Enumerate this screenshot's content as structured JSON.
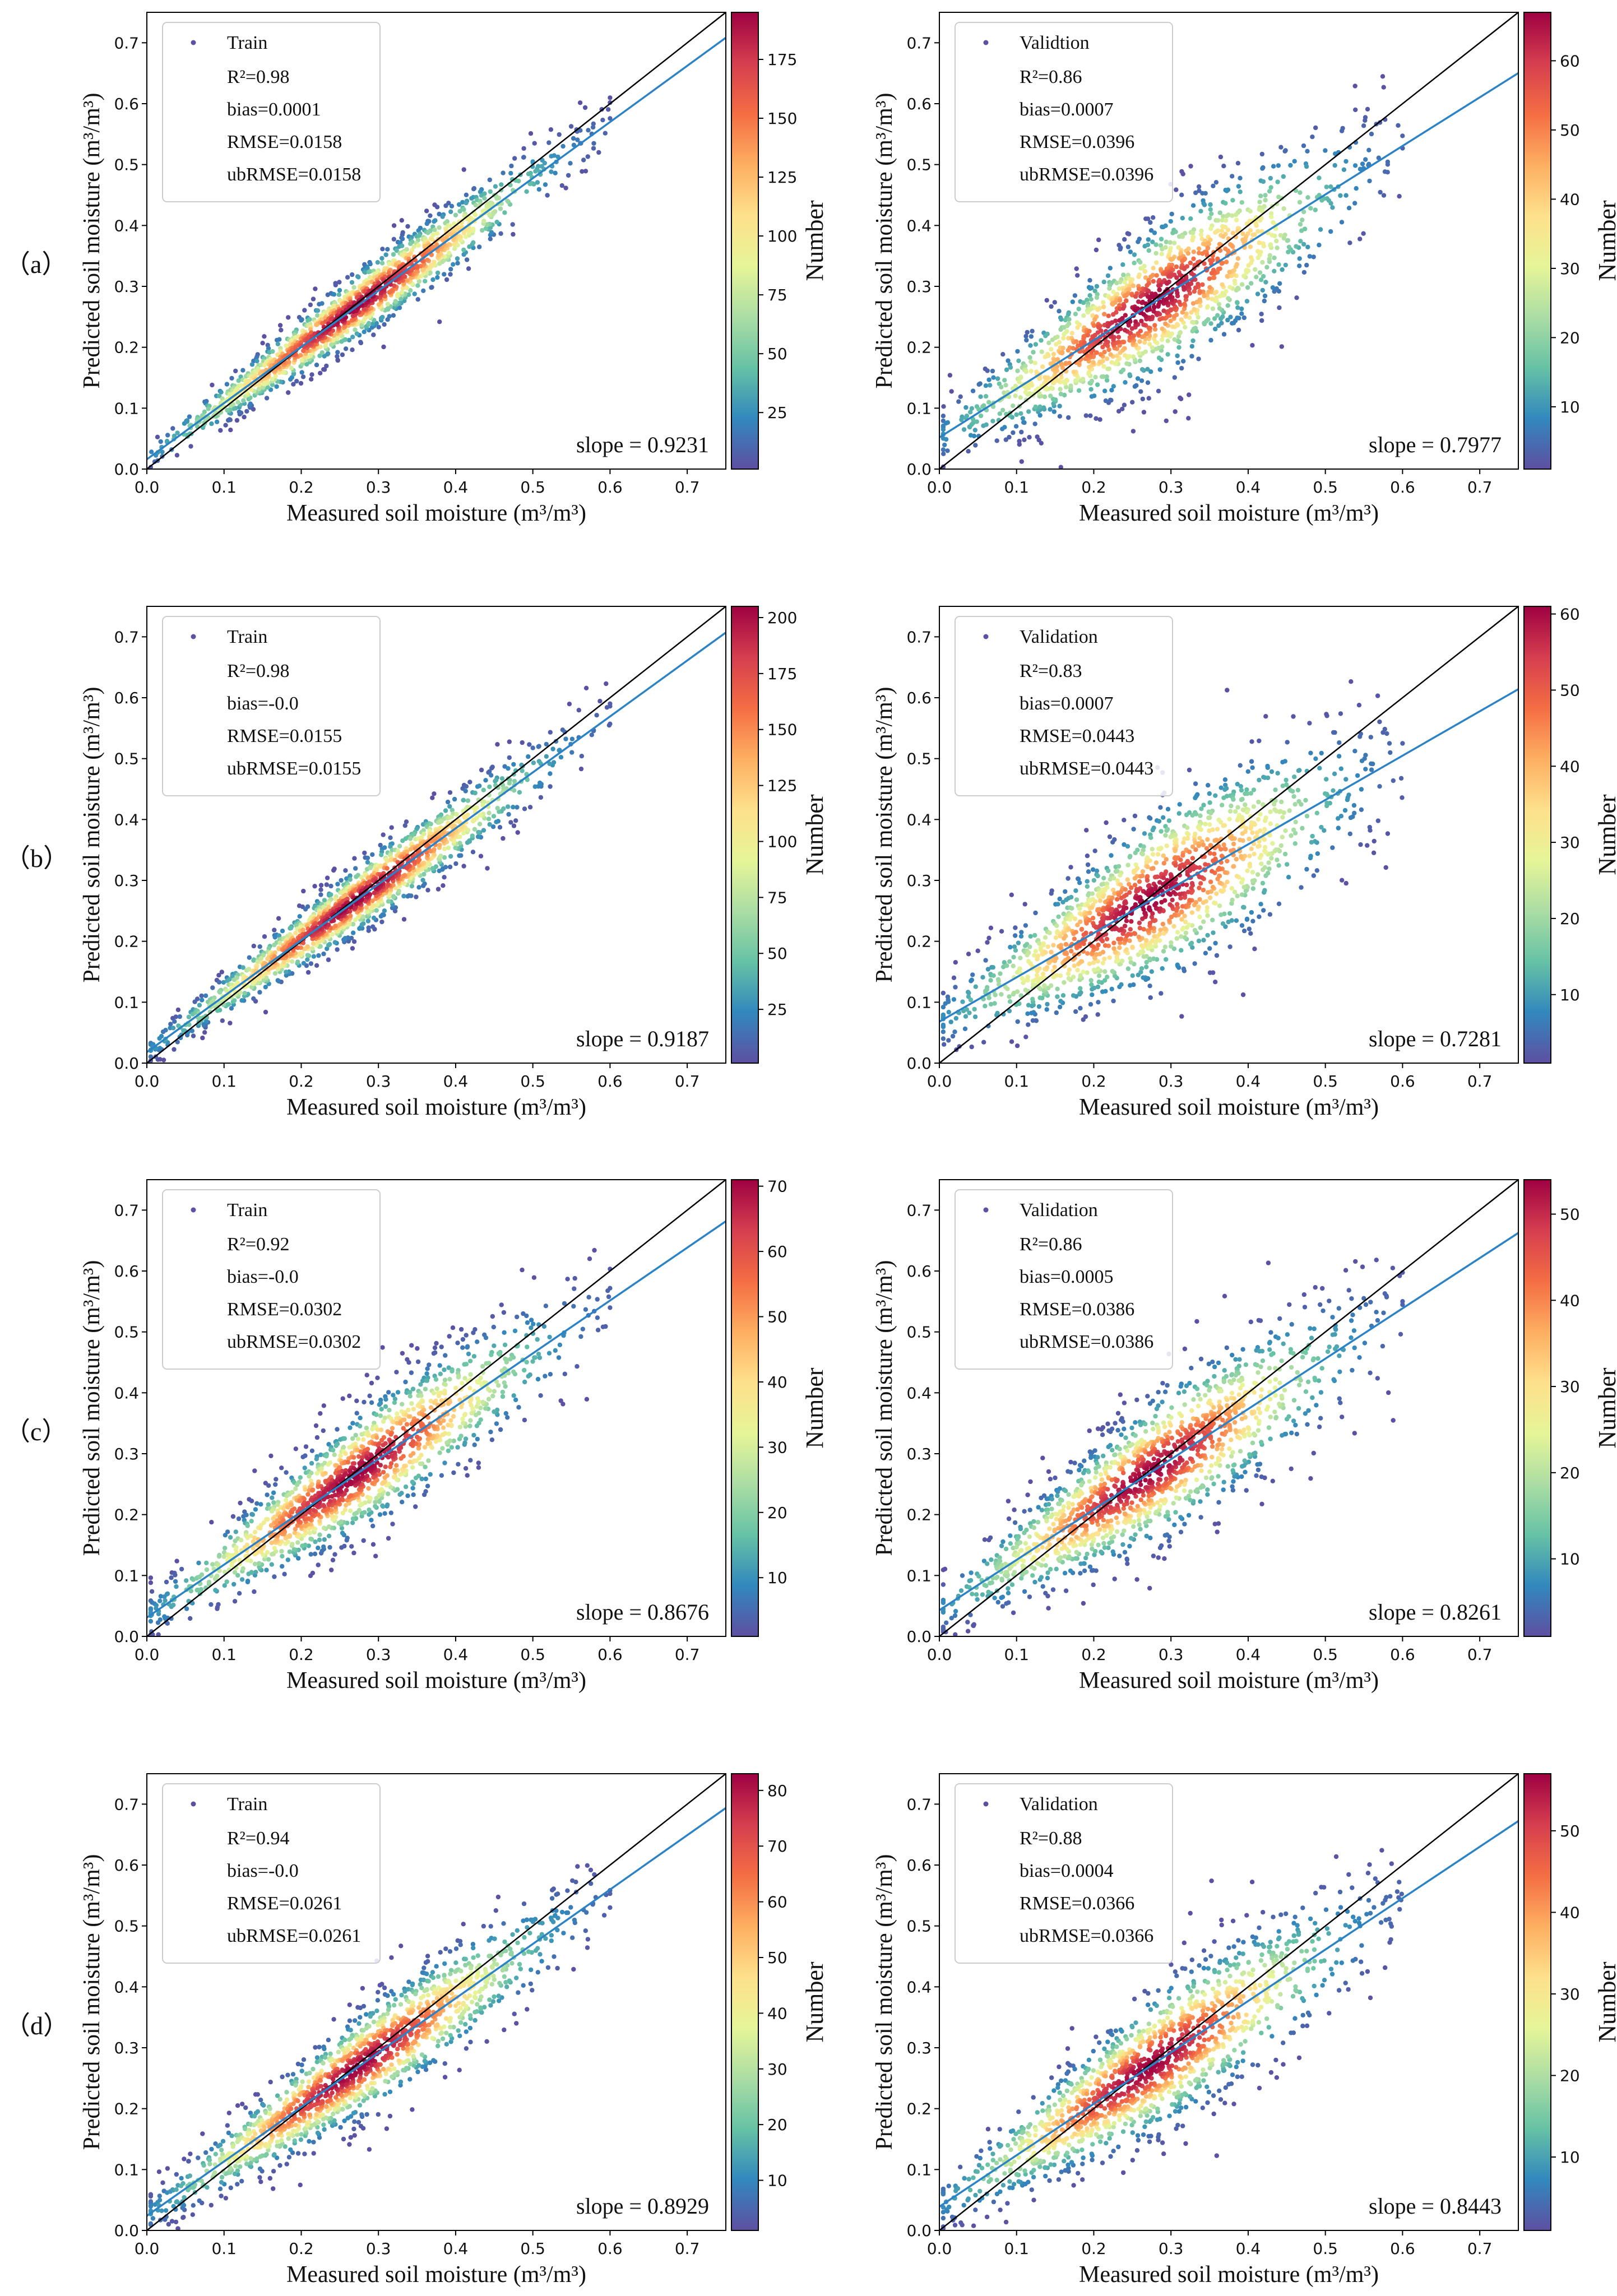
{
  "figure": {
    "row_labels": [
      "（a）",
      "（b）",
      "（c）",
      "（d）"
    ]
  },
  "chart_data": [
    {
      "type": "scatter",
      "row": "（a）",
      "xlabel": "Measured soil moisture (m³/m³)",
      "ylabel": "Predicted soil moisture (m³/m³)",
      "xlim": [
        0,
        0.75
      ],
      "ylim": [
        0,
        0.75
      ],
      "xticks": [
        0.0,
        0.1,
        0.2,
        0.3,
        0.4,
        0.5,
        0.6,
        0.7
      ],
      "yticks": [
        0.0,
        0.1,
        0.2,
        0.3,
        0.4,
        0.5,
        0.6,
        0.7
      ],
      "legend": {
        "label": "Train",
        "r2": "R²=0.98",
        "bias": "bias=0.0001",
        "rmse": "RMSE=0.0158",
        "ubrmse": "ubRMSE=0.0158"
      },
      "slope_label": "slope = 0.9231",
      "fit": {
        "slope": 0.9231,
        "intercept": 0.016
      },
      "spread": 0.02,
      "colorbar": {
        "label": "Number",
        "ticks": [
          25,
          50,
          75,
          100,
          125,
          150,
          175
        ],
        "max": 195
      },
      "colormap": [
        "#5e4fa2",
        "#3288bd",
        "#66c2a5",
        "#abdda4",
        "#e6f598",
        "#fee08b",
        "#fdae61",
        "#f46d43",
        "#d53e4f",
        "#9e0142"
      ]
    },
    {
      "type": "scatter",
      "row": "（a）",
      "xlabel": "Measured soil moisture (m³/m³)",
      "ylabel": "Predicted soil moisture (m³/m³)",
      "xlim": [
        0,
        0.75
      ],
      "ylim": [
        0,
        0.75
      ],
      "xticks": [
        0.0,
        0.1,
        0.2,
        0.3,
        0.4,
        0.5,
        0.6,
        0.7
      ],
      "yticks": [
        0.0,
        0.1,
        0.2,
        0.3,
        0.4,
        0.5,
        0.6,
        0.7
      ],
      "legend": {
        "label": "Validtion",
        "r2": "R²=0.86",
        "bias": "bias=0.0007",
        "rmse": "RMSE=0.0396",
        "ubrmse": "ubRMSE=0.0396"
      },
      "slope_label": "slope = 0.7977",
      "fit": {
        "slope": 0.7977,
        "intercept": 0.052
      },
      "spread": 0.045,
      "colorbar": {
        "label": "Number",
        "ticks": [
          10,
          20,
          30,
          40,
          50,
          60
        ],
        "max": 67
      },
      "colormap": [
        "#5e4fa2",
        "#3288bd",
        "#66c2a5",
        "#abdda4",
        "#e6f598",
        "#fee08b",
        "#fdae61",
        "#f46d43",
        "#d53e4f",
        "#9e0142"
      ]
    },
    {
      "type": "scatter",
      "row": "（b）",
      "xlabel": "Measured soil moisture (m³/m³)",
      "ylabel": "Predicted soil moisture (m³/m³)",
      "xlim": [
        0,
        0.75
      ],
      "ylim": [
        0,
        0.75
      ],
      "xticks": [
        0.0,
        0.1,
        0.2,
        0.3,
        0.4,
        0.5,
        0.6,
        0.7
      ],
      "yticks": [
        0.0,
        0.1,
        0.2,
        0.3,
        0.4,
        0.5,
        0.6,
        0.7
      ],
      "legend": {
        "label": "Train",
        "r2": "R²=0.98",
        "bias": "bias=-0.0",
        "rmse": "RMSE=0.0155",
        "ubrmse": "ubRMSE=0.0155"
      },
      "slope_label": "slope = 0.9187",
      "fit": {
        "slope": 0.9187,
        "intercept": 0.018
      },
      "spread": 0.02,
      "colorbar": {
        "label": "Number",
        "ticks": [
          25,
          50,
          75,
          100,
          125,
          150,
          175,
          200
        ],
        "max": 205
      },
      "colormap": [
        "#5e4fa2",
        "#3288bd",
        "#66c2a5",
        "#abdda4",
        "#e6f598",
        "#fee08b",
        "#fdae61",
        "#f46d43",
        "#d53e4f",
        "#9e0142"
      ]
    },
    {
      "type": "scatter",
      "row": "（b）",
      "xlabel": "Measured soil moisture (m³/m³)",
      "ylabel": "Predicted soil moisture (m³/m³)",
      "xlim": [
        0,
        0.75
      ],
      "ylim": [
        0,
        0.75
      ],
      "xticks": [
        0.0,
        0.1,
        0.2,
        0.3,
        0.4,
        0.5,
        0.6,
        0.7
      ],
      "yticks": [
        0.0,
        0.1,
        0.2,
        0.3,
        0.4,
        0.5,
        0.6,
        0.7
      ],
      "legend": {
        "label": "Validation",
        "r2": "R²=0.83",
        "bias": "bias=0.0007",
        "rmse": "RMSE=0.0443",
        "ubrmse": "ubRMSE=0.0443"
      },
      "slope_label": "slope = 0.7281",
      "fit": {
        "slope": 0.7281,
        "intercept": 0.068
      },
      "spread": 0.05,
      "colorbar": {
        "label": "Number",
        "ticks": [
          10,
          20,
          30,
          40,
          50,
          60
        ],
        "max": 61
      },
      "colormap": [
        "#5e4fa2",
        "#3288bd",
        "#66c2a5",
        "#abdda4",
        "#e6f598",
        "#fee08b",
        "#fdae61",
        "#f46d43",
        "#d53e4f",
        "#9e0142"
      ]
    },
    {
      "type": "scatter",
      "row": "（c）",
      "xlabel": "Measured soil moisture (m³/m³)",
      "ylabel": "Predicted soil moisture (m³/m³)",
      "xlim": [
        0,
        0.75
      ],
      "ylim": [
        0,
        0.75
      ],
      "xticks": [
        0.0,
        0.1,
        0.2,
        0.3,
        0.4,
        0.5,
        0.6,
        0.7
      ],
      "yticks": [
        0.0,
        0.1,
        0.2,
        0.3,
        0.4,
        0.5,
        0.6,
        0.7
      ],
      "legend": {
        "label": "Train",
        "r2": "R²=0.92",
        "bias": "bias=-0.0",
        "rmse": "RMSE=0.0302",
        "ubrmse": "ubRMSE=0.0302"
      },
      "slope_label": "slope = 0.8676",
      "fit": {
        "slope": 0.8676,
        "intercept": 0.031
      },
      "spread": 0.035,
      "colorbar": {
        "label": "Number",
        "ticks": [
          10,
          20,
          30,
          40,
          50,
          60,
          70
        ],
        "max": 71
      },
      "colormap": [
        "#5e4fa2",
        "#3288bd",
        "#66c2a5",
        "#abdda4",
        "#e6f598",
        "#fee08b",
        "#fdae61",
        "#f46d43",
        "#d53e4f",
        "#9e0142"
      ]
    },
    {
      "type": "scatter",
      "row": "（c）",
      "xlabel": "Measured soil moisture (m³/m³)",
      "ylabel": "Predicted soil moisture (m³/m³)",
      "xlim": [
        0,
        0.75
      ],
      "ylim": [
        0,
        0.75
      ],
      "xticks": [
        0.0,
        0.1,
        0.2,
        0.3,
        0.4,
        0.5,
        0.6,
        0.7
      ],
      "yticks": [
        0.0,
        0.1,
        0.2,
        0.3,
        0.4,
        0.5,
        0.6,
        0.7
      ],
      "legend": {
        "label": "Validation",
        "r2": "R²=0.86",
        "bias": "bias=0.0005",
        "rmse": "RMSE=0.0386",
        "ubrmse": "ubRMSE=0.0386"
      },
      "slope_label": "slope = 0.8261",
      "fit": {
        "slope": 0.8261,
        "intercept": 0.043
      },
      "spread": 0.042,
      "colorbar": {
        "label": "Number",
        "ticks": [
          10,
          20,
          30,
          40,
          50
        ],
        "max": 54
      },
      "colormap": [
        "#5e4fa2",
        "#3288bd",
        "#66c2a5",
        "#abdda4",
        "#e6f598",
        "#fee08b",
        "#fdae61",
        "#f46d43",
        "#d53e4f",
        "#9e0142"
      ]
    },
    {
      "type": "scatter",
      "row": "（d）",
      "xlabel": "Measured soil moisture (m³/m³)",
      "ylabel": "Predicted soil moisture (m³/m³)",
      "xlim": [
        0,
        0.75
      ],
      "ylim": [
        0,
        0.75
      ],
      "xticks": [
        0.0,
        0.1,
        0.2,
        0.3,
        0.4,
        0.5,
        0.6,
        0.7
      ],
      "yticks": [
        0.0,
        0.1,
        0.2,
        0.3,
        0.4,
        0.5,
        0.6,
        0.7
      ],
      "legend": {
        "label": "Train",
        "r2": "R²=0.94",
        "bias": "bias=-0.0",
        "rmse": "RMSE=0.0261",
        "ubrmse": "ubRMSE=0.0261"
      },
      "slope_label": "slope = 0.8929",
      "fit": {
        "slope": 0.8929,
        "intercept": 0.024
      },
      "spread": 0.03,
      "colorbar": {
        "label": "Number",
        "ticks": [
          10,
          20,
          30,
          40,
          50,
          60,
          70,
          80
        ],
        "max": 83
      },
      "colormap": [
        "#5e4fa2",
        "#3288bd",
        "#66c2a5",
        "#abdda4",
        "#e6f598",
        "#fee08b",
        "#fdae61",
        "#f46d43",
        "#d53e4f",
        "#9e0142"
      ]
    },
    {
      "type": "scatter",
      "row": "（d）",
      "xlabel": "Measured soil moisture (m³/m³)",
      "ylabel": "Predicted soil moisture (m³/m³)",
      "xlim": [
        0,
        0.75
      ],
      "ylim": [
        0,
        0.75
      ],
      "xticks": [
        0.0,
        0.1,
        0.2,
        0.3,
        0.4,
        0.5,
        0.6,
        0.7
      ],
      "yticks": [
        0.0,
        0.1,
        0.2,
        0.3,
        0.4,
        0.5,
        0.6,
        0.7
      ],
      "legend": {
        "label": "Validation",
        "r2": "R²=0.88",
        "bias": "bias=0.0004",
        "rmse": "RMSE=0.0366",
        "ubrmse": "ubRMSE=0.0366"
      },
      "slope_label": "slope = 0.8443",
      "fit": {
        "slope": 0.8443,
        "intercept": 0.039
      },
      "spread": 0.04,
      "colorbar": {
        "label": "Number",
        "ticks": [
          10,
          20,
          30,
          40,
          50
        ],
        "max": 57
      },
      "colormap": [
        "#5e4fa2",
        "#3288bd",
        "#66c2a5",
        "#abdda4",
        "#e6f598",
        "#fee08b",
        "#fdae61",
        "#f46d43",
        "#d53e4f",
        "#9e0142"
      ]
    }
  ]
}
